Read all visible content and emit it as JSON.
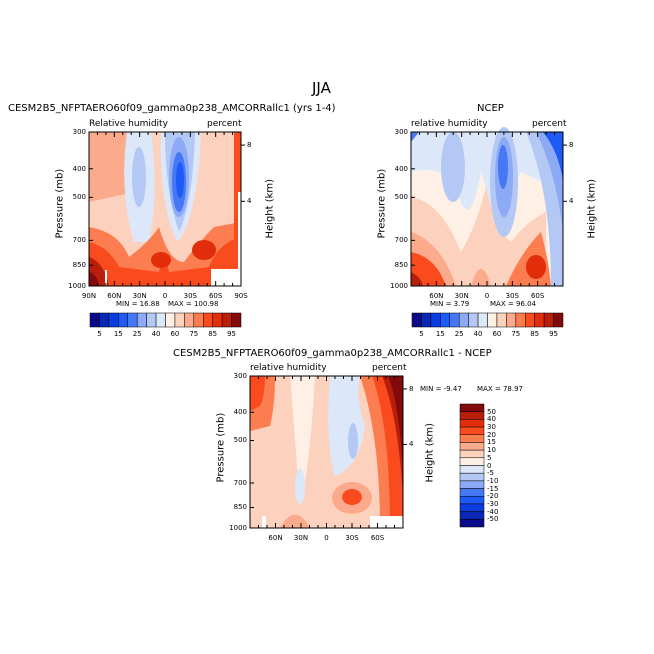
{
  "figure_title": "JJA",
  "chart_data": [
    {
      "type": "heatmap",
      "subtype": "filled-contour latitude-pressure cross-section",
      "title": "CESM2B5_NFPTAERO60f09_gamma0p238_AMCORRallc1 (yrs 1-4)",
      "left_label": "Relative humidity",
      "right_label": "percent",
      "ylabel": "Pressure (mb)",
      "ylabel_right": "Height (km)",
      "x_ticks": [
        "90N",
        "60N",
        "30N",
        "0",
        "30S",
        "60S",
        "90S"
      ],
      "y_ticks": [
        "300",
        "400",
        "500",
        "700",
        "850",
        "1000"
      ],
      "y_right_ticks": [
        "8",
        "4"
      ],
      "ylim": [
        1000,
        300
      ],
      "min_label": "MIN =   16.88",
      "max_label": "MAX = 100.98",
      "min": 16.88,
      "max": 100.98,
      "colorbar_labels": [
        "5",
        "15",
        "25",
        "40",
        "60",
        "75",
        "85",
        "95"
      ]
    },
    {
      "type": "heatmap",
      "subtype": "filled-contour latitude-pressure cross-section",
      "title": "NCEP",
      "left_label": "relative humidity",
      "right_label": "percent",
      "ylabel": "Pressure (mb)",
      "ylabel_right": "Height (km)",
      "x_ticks": [
        "60N",
        "30N",
        "0",
        "30S",
        "60S"
      ],
      "y_ticks": [
        "300",
        "400",
        "500",
        "700",
        "850",
        "1000"
      ],
      "y_right_ticks": [
        "8",
        "4"
      ],
      "ylim": [
        1000,
        300
      ],
      "min_label": "MIN =    3.79",
      "max_label": "MAX =  96.04",
      "min": 3.79,
      "max": 96.04,
      "colorbar_labels": [
        "5",
        "15",
        "25",
        "40",
        "60",
        "75",
        "85",
        "95"
      ]
    },
    {
      "type": "heatmap",
      "subtype": "filled-contour difference",
      "title": "CESM2B5_NFPTAERO60f09_gamma0p238_AMCORRallc1 - NCEP",
      "left_label": "relative humidity",
      "right_label": "percent",
      "ylabel": "Pressure (mb)",
      "ylabel_right": "Height (km)",
      "x_ticks": [
        "60N",
        "30N",
        "0",
        "30S",
        "60S"
      ],
      "y_ticks": [
        "300",
        "400",
        "500",
        "700",
        "850",
        "1000"
      ],
      "y_right_ticks": [
        "8",
        "4"
      ],
      "ylim": [
        1000,
        300
      ],
      "min_label": "MIN =   -9.47",
      "max_label": "MAX =   78.97",
      "min": -9.47,
      "max": 78.97,
      "colorbar_labels": [
        "50",
        "40",
        "30",
        "20",
        "15",
        "10",
        "5",
        "0",
        "-5",
        "-10",
        "-15",
        "-20",
        "-30",
        "-40",
        "-50"
      ]
    }
  ],
  "colors": {
    "abs_palette": [
      "#0a0a8c",
      "#0a28b4",
      "#0a3ce0",
      "#1e5af5",
      "#4678f5",
      "#8caaf5",
      "#b4c8f5",
      "#dce8fa",
      "#fff0e6",
      "#fcd2be",
      "#fcaa8c",
      "#fc7d50",
      "#fa4b1e",
      "#e12d0a",
      "#b91e0a",
      "#820a0a"
    ],
    "diff_palette": [
      "#820a0a",
      "#b91e0a",
      "#e12d0a",
      "#fa4b1e",
      "#fc7d50",
      "#fcaa8c",
      "#fcd2be",
      "#fff0e6",
      "#dce8fa",
      "#b4c8f5",
      "#8caaf5",
      "#4678f5",
      "#1e5af5",
      "#0a3ce0",
      "#0a28b4",
      "#0a0a8c"
    ]
  }
}
